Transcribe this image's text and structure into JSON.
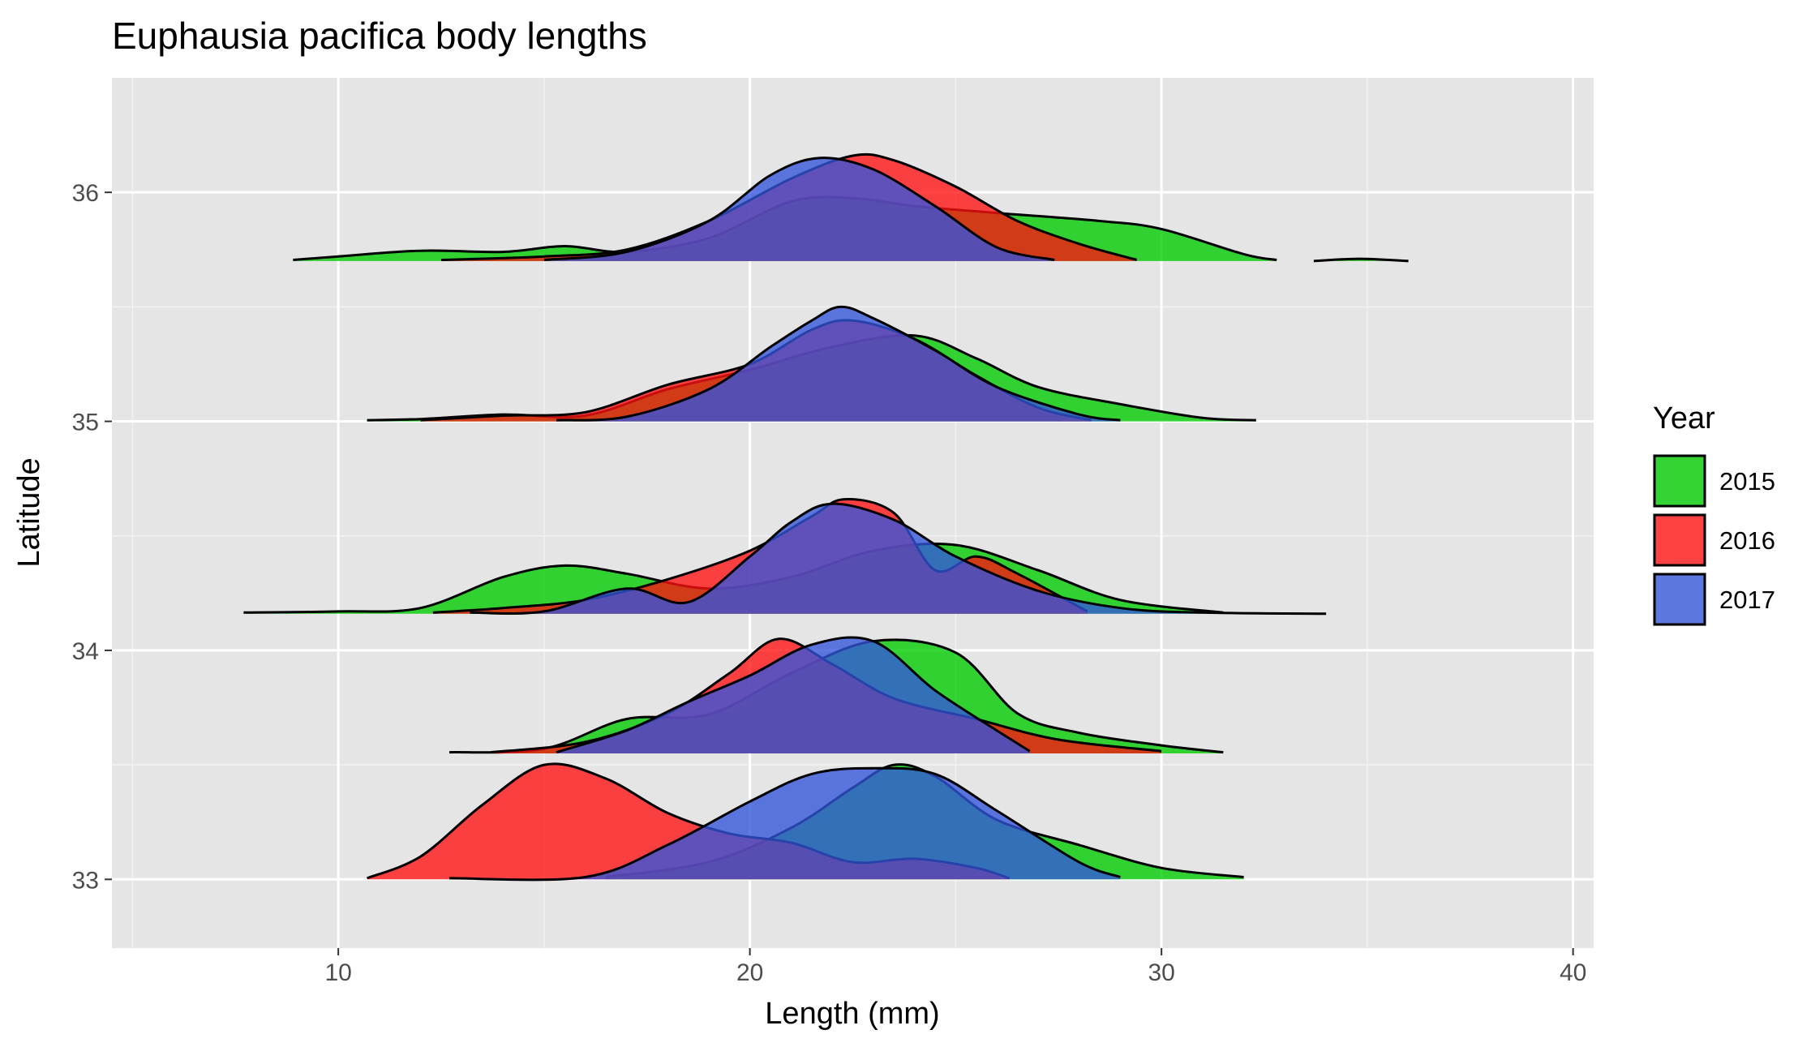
{
  "chart_data": {
    "type": "ridgeline-density",
    "title": "Euphausia pacifica body lengths",
    "xlabel": "Length (mm)",
    "ylabel": "Latitude",
    "xlim": [
      4.5,
      40.5
    ],
    "ylim": [
      32.7,
      36.5
    ],
    "x_ticks": [
      10,
      20,
      30,
      40
    ],
    "y_ticks": [
      33,
      34,
      35,
      36
    ],
    "grid": true,
    "legend": {
      "title": "Year",
      "position": "right"
    },
    "ridge_height": 0.5,
    "series": [
      {
        "name": "2015",
        "color": "#00cc00"
      },
      {
        "name": "2016",
        "color": "#ff1111"
      },
      {
        "name": "2017",
        "color": "#3355dd"
      }
    ],
    "ridges": [
      {
        "latitude": 33.0,
        "year": "2015",
        "x_range": [
          16.5,
          32.0
        ],
        "profile": [
          [
            16.5,
            0.02
          ],
          [
            19,
            0.15
          ],
          [
            21,
            0.45
          ],
          [
            22.5,
            0.8
          ],
          [
            23.5,
            1.0
          ],
          [
            24.5,
            0.9
          ],
          [
            26,
            0.52
          ],
          [
            28,
            0.3
          ],
          [
            30,
            0.1
          ],
          [
            32,
            0.02
          ]
        ]
      },
      {
        "latitude": 33.0,
        "year": "2016",
        "x_range": [
          10.7,
          26.3
        ],
        "profile": [
          [
            10.7,
            0.01
          ],
          [
            12,
            0.2
          ],
          [
            13.5,
            0.65
          ],
          [
            15,
            1.0
          ],
          [
            16.5,
            0.88
          ],
          [
            18,
            0.58
          ],
          [
            19.5,
            0.4
          ],
          [
            21,
            0.32
          ],
          [
            22.5,
            0.15
          ],
          [
            24,
            0.18
          ],
          [
            25.5,
            0.1
          ],
          [
            26.3,
            0.01
          ]
        ]
      },
      {
        "latitude": 33.0,
        "year": "2017",
        "x_range": [
          12.7,
          29.0
        ],
        "profile": [
          [
            12.7,
            0.01
          ],
          [
            16,
            0.02
          ],
          [
            18,
            0.3
          ],
          [
            20,
            0.68
          ],
          [
            21.5,
            0.92
          ],
          [
            23,
            0.97
          ],
          [
            24.5,
            0.92
          ],
          [
            26,
            0.6
          ],
          [
            28,
            0.15
          ],
          [
            29,
            0.02
          ]
        ]
      },
      {
        "latitude": 33.55,
        "year": "2015",
        "x_range": [
          12.7,
          31.5
        ],
        "profile": [
          [
            12.7,
            0.01
          ],
          [
            15,
            0.04
          ],
          [
            17,
            0.3
          ],
          [
            19,
            0.34
          ],
          [
            21,
            0.7
          ],
          [
            23,
            0.98
          ],
          [
            25,
            0.88
          ],
          [
            26.5,
            0.35
          ],
          [
            28,
            0.18
          ],
          [
            30,
            0.07
          ],
          [
            31.5,
            0.01
          ]
        ]
      },
      {
        "latitude": 33.55,
        "year": "2016",
        "x_range": [
          13.7,
          30.0
        ],
        "profile": [
          [
            13.7,
            0.01
          ],
          [
            16,
            0.1
          ],
          [
            18,
            0.35
          ],
          [
            19.5,
            0.7
          ],
          [
            20.7,
            1.0
          ],
          [
            22,
            0.78
          ],
          [
            23.5,
            0.48
          ],
          [
            25.5,
            0.3
          ],
          [
            27.5,
            0.12
          ],
          [
            30,
            0.02
          ]
        ]
      },
      {
        "latitude": 33.55,
        "year": "2017",
        "x_range": [
          15.3,
          26.8
        ],
        "profile": [
          [
            15.3,
            0.01
          ],
          [
            17,
            0.2
          ],
          [
            18.5,
            0.45
          ],
          [
            20,
            0.68
          ],
          [
            21.5,
            0.95
          ],
          [
            23,
            0.98
          ],
          [
            24.5,
            0.55
          ],
          [
            26,
            0.2
          ],
          [
            26.8,
            0.02
          ]
        ]
      },
      {
        "latitude": 34.16,
        "year": "2015",
        "x_range": [
          7.7,
          31.5
        ],
        "profile": [
          [
            7.7,
            0.01
          ],
          [
            10,
            0.02
          ],
          [
            12,
            0.05
          ],
          [
            14,
            0.32
          ],
          [
            15.5,
            0.42
          ],
          [
            17,
            0.35
          ],
          [
            19,
            0.22
          ],
          [
            21,
            0.32
          ],
          [
            23,
            0.55
          ],
          [
            25,
            0.6
          ],
          [
            27,
            0.38
          ],
          [
            29,
            0.12
          ],
          [
            31.5,
            0.01
          ]
        ]
      },
      {
        "latitude": 34.16,
        "year": "2016",
        "x_range": [
          12.3,
          28.2
        ],
        "profile": [
          [
            12.3,
            0.01
          ],
          [
            14,
            0.05
          ],
          [
            16,
            0.12
          ],
          [
            18,
            0.3
          ],
          [
            20,
            0.55
          ],
          [
            21.5,
            0.85
          ],
          [
            22.3,
            1.0
          ],
          [
            23.5,
            0.88
          ],
          [
            24.5,
            0.38
          ],
          [
            25.5,
            0.5
          ],
          [
            26.5,
            0.35
          ],
          [
            28.2,
            0.02
          ]
        ]
      },
      {
        "latitude": 34.16,
        "year": "2017",
        "x_range": [
          13.2,
          34.0
        ],
        "profile": [
          [
            13.2,
            0.01
          ],
          [
            15,
            0.02
          ],
          [
            17,
            0.22
          ],
          [
            18.5,
            0.1
          ],
          [
            20,
            0.5
          ],
          [
            21,
            0.8
          ],
          [
            22,
            0.96
          ],
          [
            23.5,
            0.82
          ],
          [
            25,
            0.5
          ],
          [
            27,
            0.2
          ],
          [
            29,
            0.05
          ],
          [
            31,
            0.01
          ],
          [
            34,
            0.0
          ]
        ]
      },
      {
        "latitude": 35.0,
        "year": "2015",
        "x_range": [
          10.7,
          32.3
        ],
        "profile": [
          [
            10.7,
            0.01
          ],
          [
            12,
            0.02
          ],
          [
            14,
            0.06
          ],
          [
            16,
            0.05
          ],
          [
            18,
            0.28
          ],
          [
            20,
            0.45
          ],
          [
            22,
            0.65
          ],
          [
            24,
            0.75
          ],
          [
            25.5,
            0.55
          ],
          [
            27,
            0.3
          ],
          [
            29,
            0.15
          ],
          [
            31,
            0.03
          ],
          [
            32.3,
            0.01
          ]
        ]
      },
      {
        "latitude": 35.0,
        "year": "2016",
        "x_range": [
          12.0,
          28.3
        ],
        "profile": [
          [
            12.0,
            0.01
          ],
          [
            14,
            0.05
          ],
          [
            16,
            0.08
          ],
          [
            18,
            0.32
          ],
          [
            20,
            0.5
          ],
          [
            21.5,
            0.8
          ],
          [
            22.5,
            0.88
          ],
          [
            24,
            0.72
          ],
          [
            25.5,
            0.4
          ],
          [
            27,
            0.12
          ],
          [
            28.3,
            0.01
          ]
        ]
      },
      {
        "latitude": 35.0,
        "year": "2017",
        "x_range": [
          15.3,
          29.0
        ],
        "profile": [
          [
            15.3,
            0.01
          ],
          [
            17,
            0.04
          ],
          [
            19,
            0.28
          ],
          [
            20.5,
            0.65
          ],
          [
            21.5,
            0.88
          ],
          [
            22.2,
            1.0
          ],
          [
            23,
            0.9
          ],
          [
            24.5,
            0.62
          ],
          [
            26,
            0.3
          ],
          [
            28,
            0.06
          ],
          [
            29,
            0.01
          ]
        ]
      },
      {
        "latitude": 35.7,
        "year": "2015",
        "x_range": [
          8.9,
          32.8
        ],
        "profile": [
          [
            8.9,
            0.01
          ],
          [
            10,
            0.04
          ],
          [
            12,
            0.09
          ],
          [
            14,
            0.08
          ],
          [
            15.5,
            0.13
          ],
          [
            17,
            0.08
          ],
          [
            19,
            0.2
          ],
          [
            21,
            0.52
          ],
          [
            22.5,
            0.55
          ],
          [
            24,
            0.48
          ],
          [
            26,
            0.42
          ],
          [
            28.5,
            0.35
          ],
          [
            30,
            0.28
          ],
          [
            32,
            0.06
          ],
          [
            32.8,
            0.01
          ]
        ]
      },
      {
        "latitude": 35.7,
        "year": "2015b",
        "x_range": [
          33.7,
          36.0
        ],
        "profile": [
          [
            33.7,
            0.0
          ],
          [
            34.8,
            0.02
          ],
          [
            36.0,
            0.0
          ]
        ]
      },
      {
        "latitude": 35.7,
        "year": "2016",
        "x_range": [
          12.5,
          29.4
        ],
        "profile": [
          [
            12.5,
            0.01
          ],
          [
            15,
            0.04
          ],
          [
            17,
            0.1
          ],
          [
            19,
            0.35
          ],
          [
            21,
            0.72
          ],
          [
            22.5,
            0.92
          ],
          [
            23.5,
            0.88
          ],
          [
            25,
            0.65
          ],
          [
            26.5,
            0.35
          ],
          [
            28,
            0.15
          ],
          [
            29.4,
            0.01
          ]
        ]
      },
      {
        "latitude": 35.7,
        "year": "2017",
        "x_range": [
          15.0,
          27.4
        ],
        "profile": [
          [
            15.0,
            0.01
          ],
          [
            17,
            0.08
          ],
          [
            19,
            0.35
          ],
          [
            20.5,
            0.75
          ],
          [
            21.7,
            0.9
          ],
          [
            23,
            0.8
          ],
          [
            24.5,
            0.48
          ],
          [
            26,
            0.12
          ],
          [
            27.4,
            0.01
          ]
        ]
      }
    ]
  }
}
